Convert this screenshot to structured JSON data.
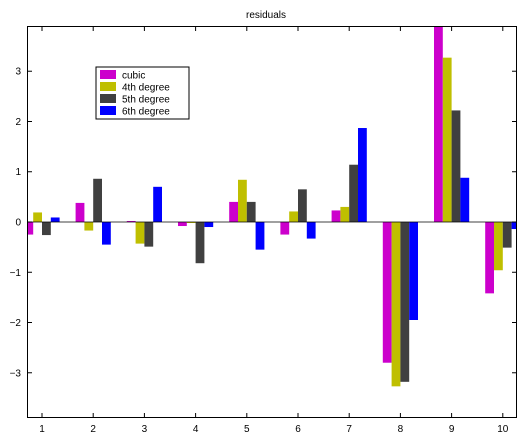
{
  "chart_data": {
    "type": "bar",
    "title": "residuals",
    "xlabel": "",
    "ylabel": "",
    "categories": [
      "1",
      "2",
      "3",
      "4",
      "5",
      "6",
      "7",
      "8",
      "9",
      "10"
    ],
    "ylim": [
      -3.9,
      3.9
    ],
    "yticks": [
      -3,
      -2,
      -1,
      0,
      1,
      2,
      3
    ],
    "grid": false,
    "legend_position": "top-left",
    "series": [
      {
        "name": "cubic",
        "color": "#cc00cc",
        "values": [
          -0.25,
          0.38,
          0.02,
          -0.08,
          0.4,
          -0.25,
          0.23,
          -2.8,
          3.92,
          -1.42
        ]
      },
      {
        "name": "4th degree",
        "color": "#bfbf00",
        "values": [
          0.19,
          -0.17,
          -0.43,
          -0.02,
          0.84,
          0.21,
          0.3,
          -3.27,
          3.27,
          -0.96
        ]
      },
      {
        "name": "5th degree",
        "color": "#404040",
        "values": [
          -0.26,
          0.86,
          -0.49,
          -0.82,
          0.4,
          0.65,
          1.14,
          -3.18,
          2.22,
          -0.51
        ]
      },
      {
        "name": "6th degree",
        "color": "#0000ff",
        "values": [
          0.09,
          -0.45,
          0.7,
          -0.1,
          -0.55,
          -0.33,
          1.87,
          -1.95,
          0.88,
          -0.14
        ]
      }
    ]
  }
}
